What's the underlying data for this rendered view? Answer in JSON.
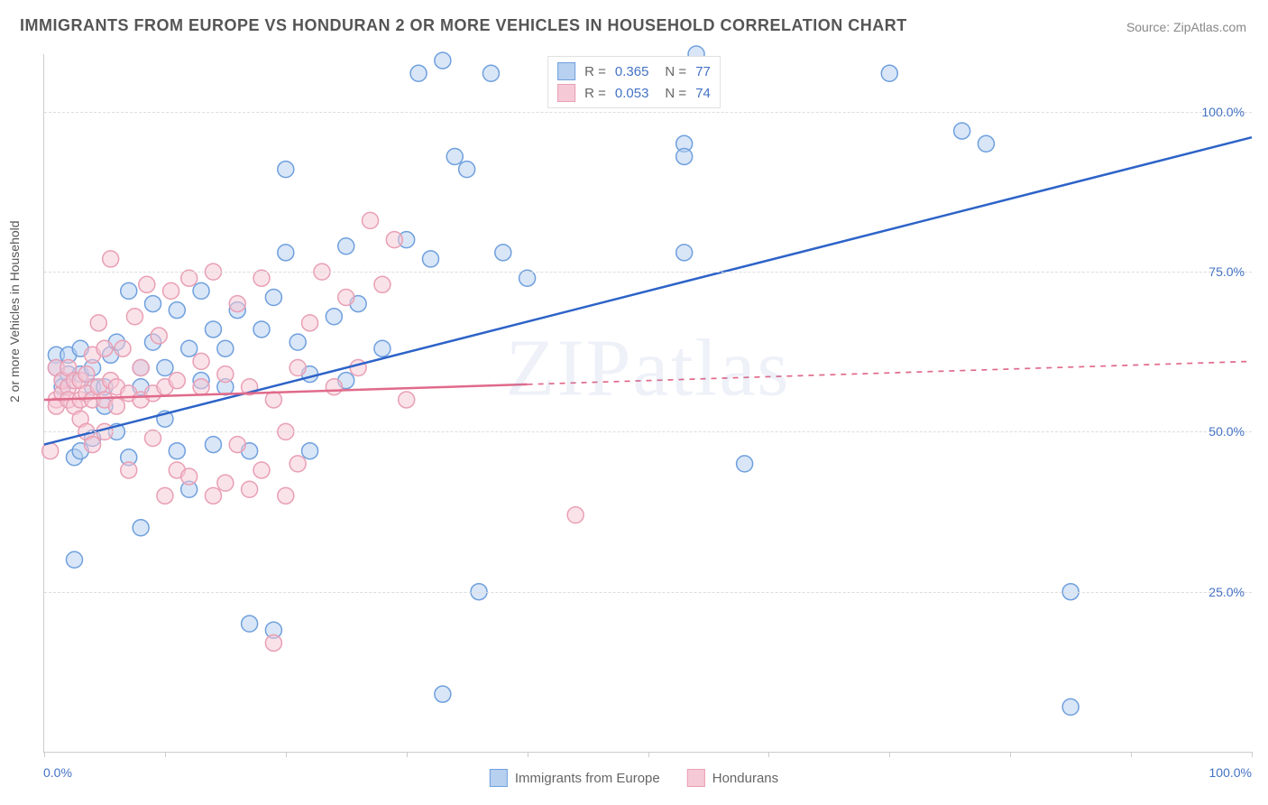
{
  "title": "IMMIGRANTS FROM EUROPE VS HONDURAN 2 OR MORE VEHICLES IN HOUSEHOLD CORRELATION CHART",
  "source": "Source: ZipAtlas.com",
  "watermark": "ZIPatlas",
  "chart": {
    "type": "scatter",
    "background_color": "#ffffff",
    "grid_color": "#dddddd",
    "border_color": "#cccccc",
    "xlim": [
      0,
      100
    ],
    "ylim": [
      0,
      109
    ],
    "x_ticks_major": [
      0,
      10,
      20,
      30,
      40,
      50,
      60,
      70,
      80,
      90,
      100
    ],
    "x_tick_labels": {
      "0": "0.0%",
      "100": "100.0%"
    },
    "y_gridlines": [
      25,
      50,
      75,
      100
    ],
    "y_tick_labels": {
      "25": "25.0%",
      "50": "50.0%",
      "75": "75.0%",
      "100": "100.0%"
    },
    "y_axis_title": "2 or more Vehicles in Household",
    "axis_label_color": "#4472c4",
    "axis_label_fontsize": 14,
    "title_fontsize": 18,
    "marker_radius": 9,
    "marker_stroke_width": 1.5,
    "marker_fill_opacity": 0.28,
    "trendline_width": 2.5
  },
  "series": [
    {
      "label": "Immigrants from Europe",
      "color_stroke": "#6fa0de",
      "color_fill": "#b7d0ef",
      "trendline_color": "#2d63c8",
      "R": "0.365",
      "N": "77",
      "trendline": {
        "x1": 0,
        "y1": 48,
        "x2": 100,
        "y2": 96,
        "solid_until_x": 100
      },
      "points": [
        [
          1,
          62
        ],
        [
          1,
          60
        ],
        [
          1.5,
          58
        ],
        [
          1.5,
          57
        ],
        [
          2,
          59
        ],
        [
          2,
          62
        ],
        [
          2.5,
          46
        ],
        [
          2.5,
          30
        ],
        [
          3,
          63
        ],
        [
          3,
          59
        ],
        [
          3,
          47
        ],
        [
          4,
          60
        ],
        [
          4,
          57
        ],
        [
          4,
          49
        ],
        [
          5,
          57
        ],
        [
          5,
          54
        ],
        [
          5.5,
          62
        ],
        [
          6,
          64
        ],
        [
          6,
          50
        ],
        [
          7,
          72
        ],
        [
          7,
          46
        ],
        [
          8,
          60
        ],
        [
          8,
          57
        ],
        [
          8,
          35
        ],
        [
          9,
          64
        ],
        [
          9,
          70
        ],
        [
          10,
          60
        ],
        [
          10,
          52
        ],
        [
          11,
          69
        ],
        [
          11,
          47
        ],
        [
          12,
          63
        ],
        [
          12,
          41
        ],
        [
          13,
          72
        ],
        [
          13,
          58
        ],
        [
          14,
          66
        ],
        [
          14,
          48
        ],
        [
          15,
          57
        ],
        [
          15,
          63
        ],
        [
          16,
          69
        ],
        [
          17,
          47
        ],
        [
          17,
          20
        ],
        [
          18,
          66
        ],
        [
          19,
          71
        ],
        [
          19,
          19
        ],
        [
          20,
          78
        ],
        [
          20,
          91
        ],
        [
          21,
          64
        ],
        [
          22,
          59
        ],
        [
          22,
          47
        ],
        [
          24,
          68
        ],
        [
          25,
          79
        ],
        [
          25,
          58
        ],
        [
          26,
          70
        ],
        [
          28,
          63
        ],
        [
          30,
          80
        ],
        [
          31,
          106
        ],
        [
          32,
          77
        ],
        [
          33,
          108
        ],
        [
          33,
          9
        ],
        [
          34,
          93
        ],
        [
          35,
          91
        ],
        [
          36,
          25
        ],
        [
          37,
          106
        ],
        [
          38,
          78
        ],
        [
          40,
          74
        ],
        [
          44,
          106
        ],
        [
          45,
          105
        ],
        [
          53,
          95
        ],
        [
          53,
          93
        ],
        [
          54,
          109
        ],
        [
          53,
          78
        ],
        [
          58,
          45
        ],
        [
          70,
          106
        ],
        [
          76,
          97
        ],
        [
          78,
          95
        ],
        [
          85,
          25
        ],
        [
          85,
          7
        ]
      ]
    },
    {
      "label": "Hondurans",
      "color_stroke": "#e99fb4",
      "color_fill": "#f6c9d6",
      "trendline_color": "#e06a8a",
      "R": "0.053",
      "N": "74",
      "trendline": {
        "x1": 0,
        "y1": 55,
        "x2": 100,
        "y2": 61,
        "solid_until_x": 40
      },
      "points": [
        [
          0.5,
          47
        ],
        [
          1,
          55
        ],
        [
          1,
          54
        ],
        [
          1,
          60
        ],
        [
          1.5,
          56
        ],
        [
          1.5,
          58
        ],
        [
          2,
          57
        ],
        [
          2,
          60
        ],
        [
          2,
          55
        ],
        [
          2.5,
          54
        ],
        [
          2.5,
          58
        ],
        [
          3,
          55
        ],
        [
          3,
          58
        ],
        [
          3,
          52
        ],
        [
          3.5,
          59
        ],
        [
          3.5,
          56
        ],
        [
          3.5,
          50
        ],
        [
          4,
          62
        ],
        [
          4,
          55
        ],
        [
          4,
          48
        ],
        [
          4.5,
          67
        ],
        [
          4.5,
          57
        ],
        [
          5,
          55
        ],
        [
          5,
          63
        ],
        [
          5,
          50
        ],
        [
          5.5,
          77
        ],
        [
          5.5,
          58
        ],
        [
          6,
          54
        ],
        [
          6,
          57
        ],
        [
          6.5,
          63
        ],
        [
          7,
          56
        ],
        [
          7,
          44
        ],
        [
          7.5,
          68
        ],
        [
          8,
          55
        ],
        [
          8,
          60
        ],
        [
          8.5,
          73
        ],
        [
          9,
          56
        ],
        [
          9,
          49
        ],
        [
          9.5,
          65
        ],
        [
          10,
          57
        ],
        [
          10,
          40
        ],
        [
          10.5,
          72
        ],
        [
          11,
          58
        ],
        [
          11,
          44
        ],
        [
          12,
          43
        ],
        [
          12,
          74
        ],
        [
          13,
          57
        ],
        [
          13,
          61
        ],
        [
          14,
          40
        ],
        [
          14,
          75
        ],
        [
          15,
          59
        ],
        [
          15,
          42
        ],
        [
          16,
          70
        ],
        [
          16,
          48
        ],
        [
          17,
          57
        ],
        [
          17,
          41
        ],
        [
          18,
          74
        ],
        [
          18,
          44
        ],
        [
          19,
          55
        ],
        [
          19,
          17
        ],
        [
          20,
          40
        ],
        [
          20,
          50
        ],
        [
          21,
          60
        ],
        [
          21,
          45
        ],
        [
          22,
          67
        ],
        [
          23,
          75
        ],
        [
          24,
          57
        ],
        [
          25,
          71
        ],
        [
          26,
          60
        ],
        [
          27,
          83
        ],
        [
          28,
          73
        ],
        [
          29,
          80
        ],
        [
          30,
          55
        ],
        [
          44,
          37
        ]
      ]
    }
  ],
  "legend_top": {
    "rows": [
      {
        "swatch_fill": "#b7d0ef",
        "swatch_stroke": "#6fa0de",
        "r_label": "R =",
        "r_val": "0.365",
        "n_label": "N =",
        "n_val": "77"
      },
      {
        "swatch_fill": "#f6c9d6",
        "swatch_stroke": "#e99fb4",
        "r_label": "R =",
        "r_val": "0.053",
        "n_label": "N =",
        "n_val": "74"
      }
    ]
  },
  "legend_bottom": {
    "items": [
      {
        "swatch_fill": "#b7d0ef",
        "swatch_stroke": "#6fa0de",
        "label": "Immigrants from Europe"
      },
      {
        "swatch_fill": "#f6c9d6",
        "swatch_stroke": "#e99fb4",
        "label": "Hondurans"
      }
    ]
  }
}
